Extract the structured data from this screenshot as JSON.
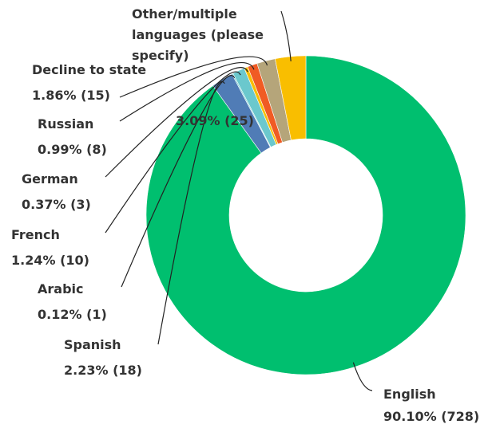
{
  "chart_data": {
    "type": "donut",
    "categories": [
      "English",
      "Spanish",
      "Arabic",
      "French",
      "German",
      "Russian",
      "Decline to state",
      "Other/multiple languages (please specify)"
    ],
    "values": [
      90.1,
      2.23,
      0.12,
      1.24,
      0.37,
      0.99,
      1.86,
      3.09
    ],
    "value_labels": [
      "90.10% (728)",
      "2.23% (18)",
      "0.12% (1)",
      "1.24% (10)",
      "0.37% (3)",
      "0.99% (8)",
      "1.86% (15)",
      "3.09% (25)"
    ],
    "colors": [
      "#00bf6f",
      "#507cb6",
      "#6bc8cd",
      "#6bc8cd",
      "#f9be00",
      "#f05b24",
      "#b5a57a",
      "#f9be00"
    ]
  }
}
